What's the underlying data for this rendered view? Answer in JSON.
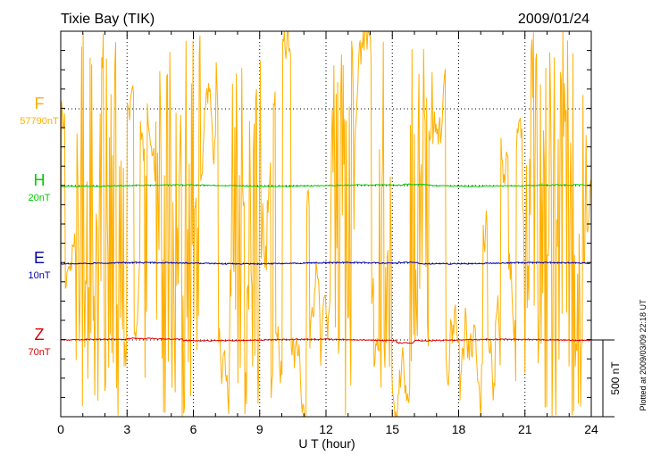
{
  "chart_data": {
    "type": "line",
    "title": "Tixie Bay (TIK)",
    "date": "2009/01/24",
    "xlabel": "U T (hour)",
    "x_range": [
      0,
      24
    ],
    "x_ticks": [
      "0",
      "3",
      "6",
      "9",
      "12",
      "15",
      "18",
      "21",
      "24"
    ],
    "scale_bar_label": "500 nT",
    "plotted_note": "Plotted at 2009/03/09 22:18 UT",
    "grid": true,
    "series": [
      {
        "name": "F",
        "baseline": "57790nT",
        "color": "#ffb000"
      },
      {
        "name": "H",
        "baseline": "20nT",
        "color": "#00cc00"
      },
      {
        "name": "E",
        "baseline": "10nT",
        "color": "#0000aa"
      },
      {
        "name": "Z",
        "baseline": "70nT",
        "color": "#dd0000"
      }
    ],
    "f_dense_intervals_hours": [
      [
        0.7,
        2.9
      ],
      [
        4.3,
        6.3
      ],
      [
        7.6,
        9.1
      ],
      [
        12.2,
        13.3
      ],
      [
        14.4,
        15.0
      ],
      [
        15.8,
        16.6
      ],
      [
        21.0,
        23.8
      ]
    ],
    "f_sparse_intervals_hours": [
      [
        0.0,
        0.7
      ],
      [
        2.9,
        4.3
      ],
      [
        6.3,
        7.6
      ],
      [
        9.1,
        12.2
      ],
      [
        13.3,
        14.4
      ],
      [
        15.0,
        15.8
      ],
      [
        16.6,
        21.0
      ]
    ]
  }
}
